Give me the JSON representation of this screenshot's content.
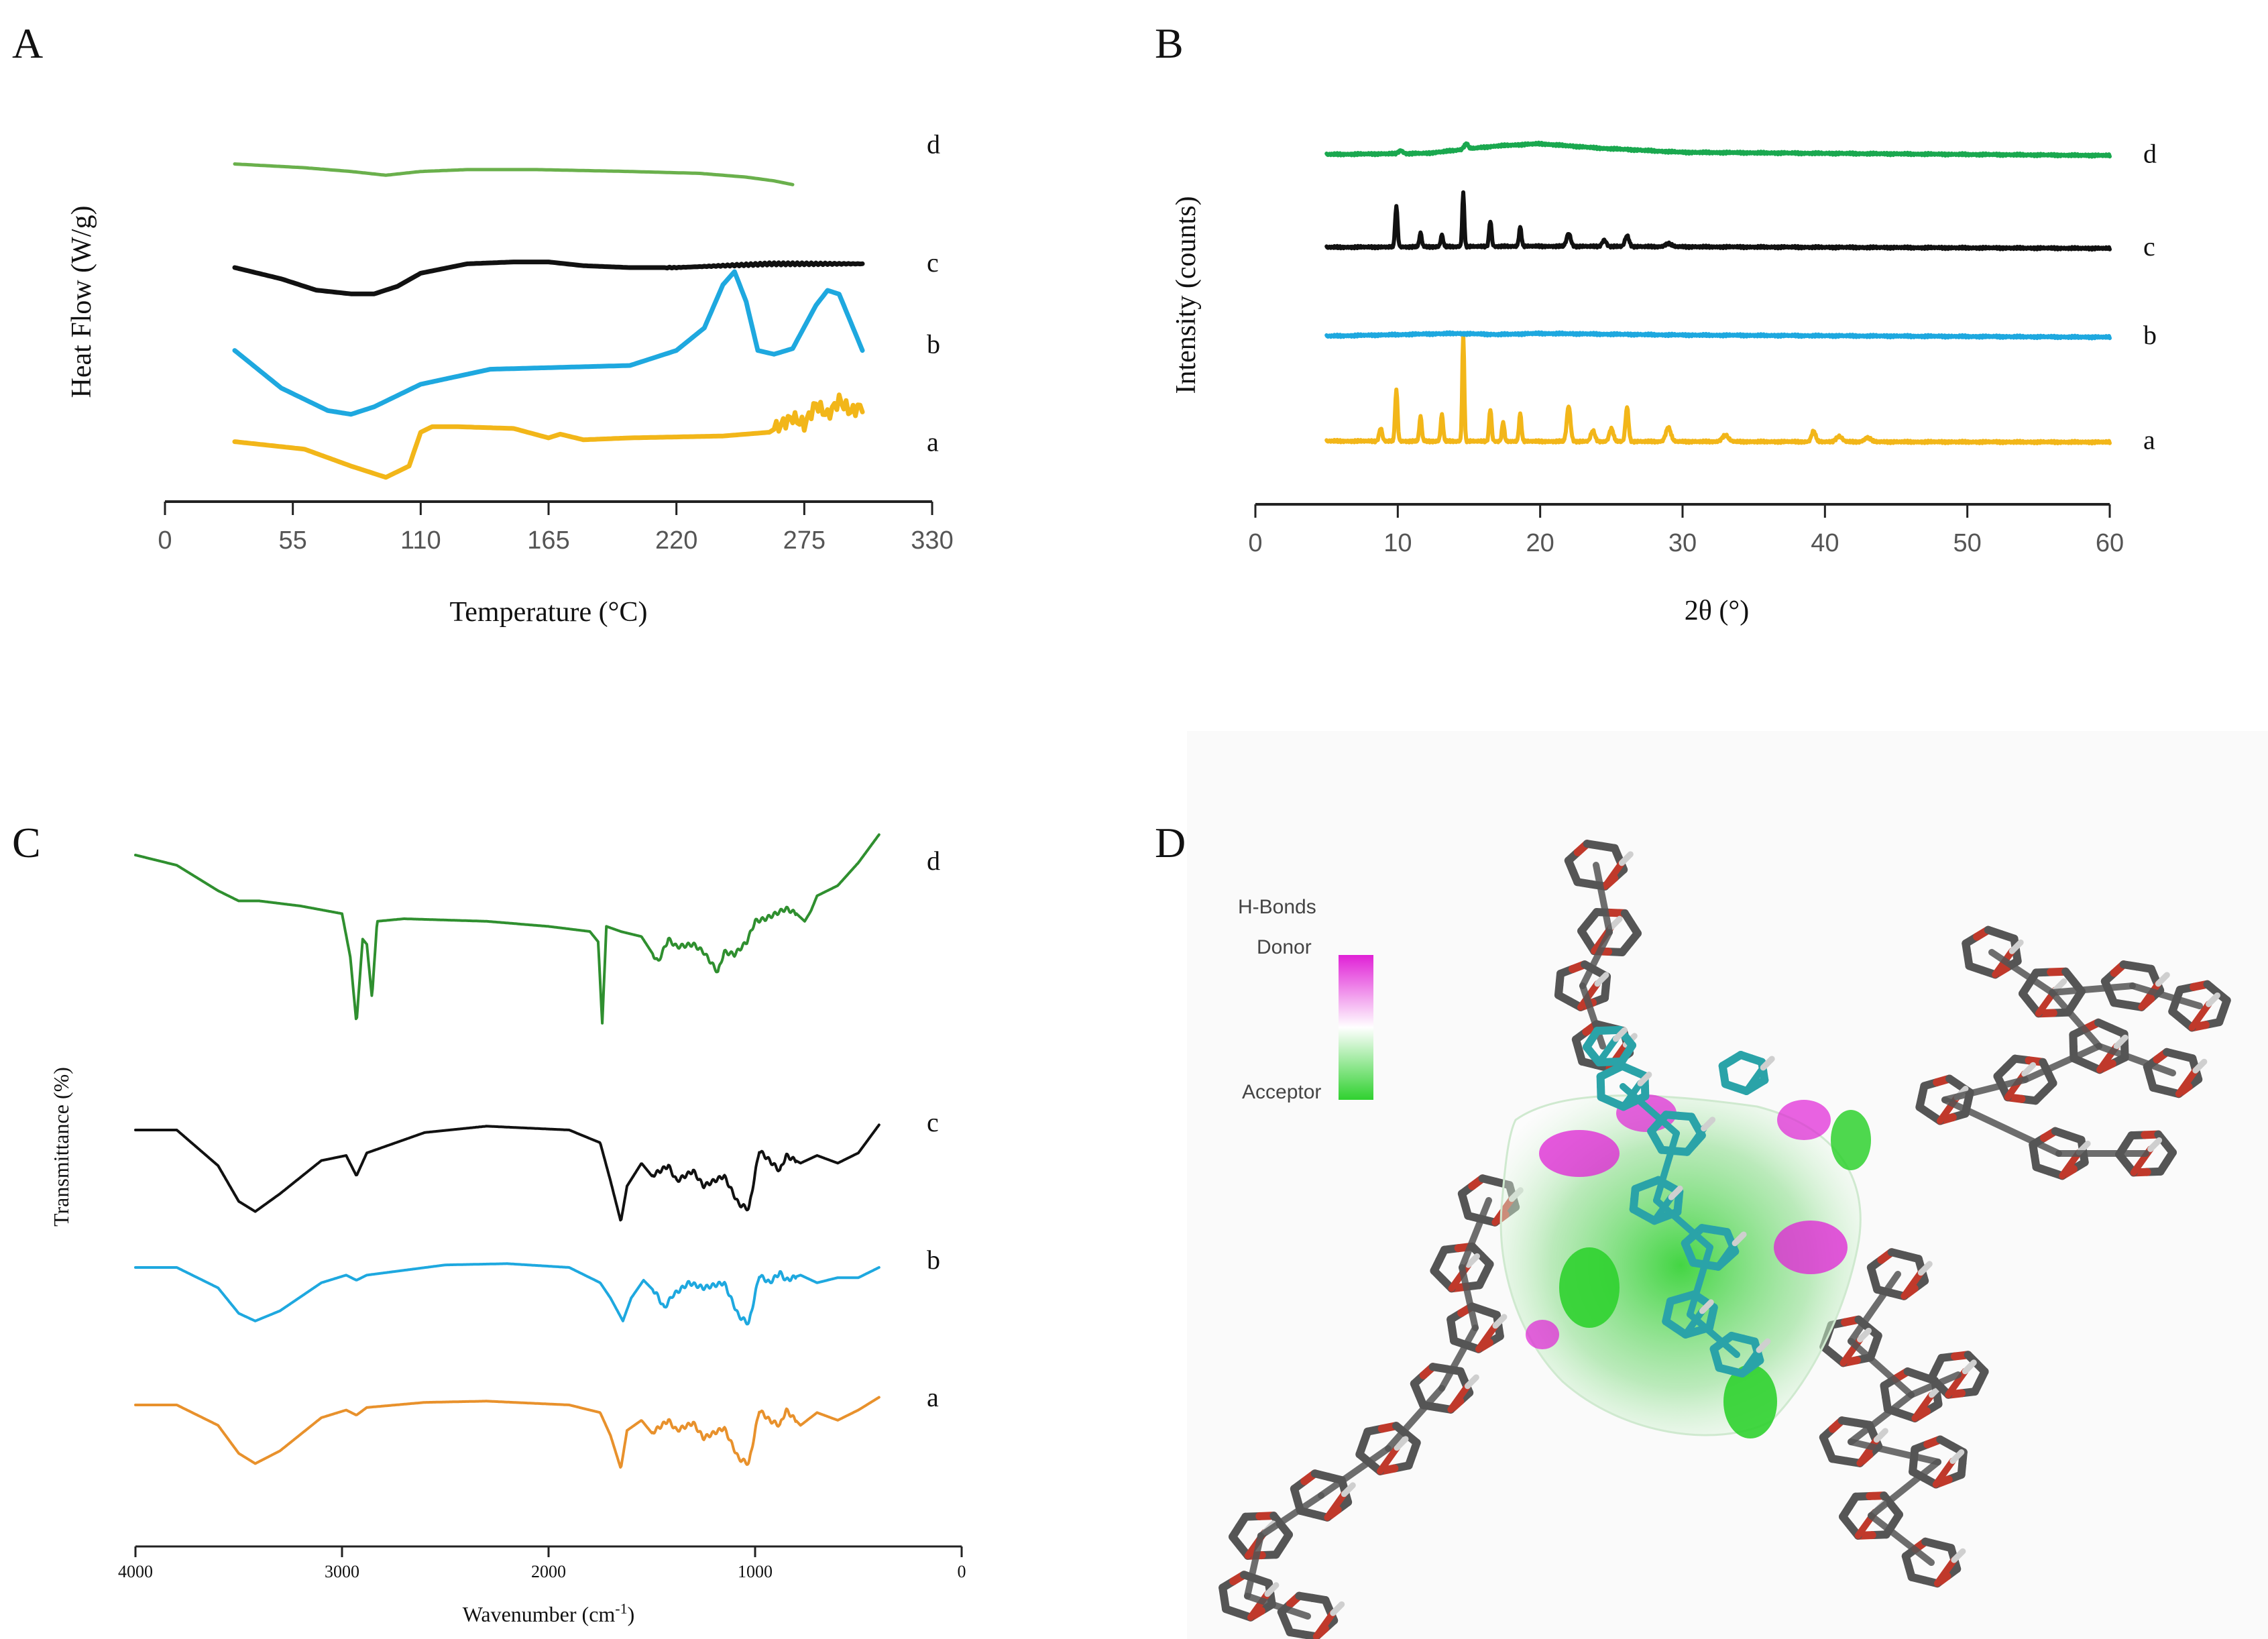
{
  "panels": [
    "A",
    "B",
    "C",
    "D"
  ],
  "chart_data": [
    {
      "id": "A",
      "type": "line",
      "xlabel": "Temperature (°C)",
      "ylabel": "Heat Flow (W/g)",
      "xlim": [
        0,
        330
      ],
      "xticks": [
        "0",
        "55",
        "110",
        "165",
        "220",
        "275",
        "330"
      ],
      "series": [
        {
          "name": "a",
          "color": "#f2b619",
          "offset": 0.08,
          "x": [
            30,
            60,
            80,
            95,
            105,
            110,
            115,
            125,
            150,
            165,
            170,
            180,
            200,
            240,
            260,
            270,
            275,
            280,
            285,
            290,
            295,
            300
          ],
          "y": [
            0,
            -0.4,
            -1.3,
            -1.9,
            -1.3,
            0.5,
            0.8,
            0.8,
            0.7,
            0.2,
            0.4,
            0.1,
            0.2,
            0.3,
            0.5,
            1.3,
            0.9,
            2.0,
            1.4,
            2.2,
            1.6,
            1.9
          ]
        },
        {
          "name": "b",
          "color": "#1ea8df",
          "offset": 0.3,
          "x": [
            30,
            50,
            70,
            80,
            90,
            110,
            140,
            170,
            200,
            220,
            232,
            240,
            245,
            250,
            255,
            262,
            270,
            280,
            285,
            290,
            295,
            300
          ],
          "y": [
            0,
            -2.0,
            -3.2,
            -3.4,
            -3.0,
            -1.8,
            -1.0,
            -0.9,
            -0.8,
            0,
            1.2,
            3.5,
            4.2,
            2.6,
            0,
            -0.2,
            0.1,
            2.4,
            3.2,
            3.0,
            1.5,
            0
          ]
        },
        {
          "name": "c",
          "color": "#111111",
          "offset": 0.5,
          "x": [
            30,
            50,
            65,
            80,
            90,
            100,
            110,
            130,
            150,
            165,
            180,
            200,
            220,
            240,
            260,
            280,
            300
          ],
          "y": [
            0,
            -0.6,
            -1.2,
            -1.4,
            -1.4,
            -1.0,
            -0.3,
            0.2,
            0.3,
            0.3,
            0.1,
            0.0,
            0.0,
            0.1,
            0.2,
            0.2,
            0.2
          ]
        },
        {
          "name": "d",
          "color": "#6ab04c",
          "offset": 0.75,
          "x": [
            30,
            60,
            80,
            95,
            110,
            130,
            160,
            200,
            230,
            250,
            262,
            270
          ],
          "y": [
            0,
            -0.2,
            -0.4,
            -0.6,
            -0.4,
            -0.3,
            -0.3,
            -0.4,
            -0.5,
            -0.7,
            -0.9,
            -1.1
          ]
        }
      ]
    },
    {
      "id": "B",
      "type": "line",
      "xlabel": "2θ (°)",
      "ylabel": "Intensity (counts)",
      "xlim": [
        0,
        60
      ],
      "xticks": [
        "0",
        "10",
        "20",
        "30",
        "40",
        "50",
        "60"
      ],
      "series": [
        {
          "name": "a",
          "color": "#f2b619",
          "offset": 0.14,
          "baseline": [
            [
              5,
              0
            ],
            [
              60,
              -0.1
            ]
          ],
          "peaks": [
            [
              8.8,
              1.2,
              0.15
            ],
            [
              9.9,
              4.8,
              0.12
            ],
            [
              11.6,
              2.3,
              0.12
            ],
            [
              13.1,
              2.5,
              0.12
            ],
            [
              14.6,
              10.0,
              0.1
            ],
            [
              16.5,
              3.0,
              0.12
            ],
            [
              17.4,
              1.8,
              0.12
            ],
            [
              18.6,
              2.6,
              0.12
            ],
            [
              22.0,
              3.3,
              0.18
            ],
            [
              23.7,
              1.0,
              0.2
            ],
            [
              25.0,
              1.2,
              0.2
            ],
            [
              26.1,
              3.2,
              0.15
            ],
            [
              29.0,
              1.3,
              0.25
            ],
            [
              33.0,
              0.6,
              0.3
            ],
            [
              39.2,
              1.0,
              0.2
            ],
            [
              41.0,
              0.5,
              0.3
            ],
            [
              43.0,
              0.4,
              0.3
            ]
          ]
        },
        {
          "name": "b",
          "color": "#1ea8df",
          "offset": 0.4,
          "baseline": [
            [
              5,
              0
            ],
            [
              14,
              0.25
            ],
            [
              17,
              0.15
            ],
            [
              20,
              0.25
            ],
            [
              30,
              0.1
            ],
            [
              60,
              -0.1
            ]
          ],
          "peaks": []
        },
        {
          "name": "c",
          "color": "#111111",
          "offset": 0.62,
          "baseline": [
            [
              5,
              0
            ],
            [
              20,
              0.1
            ],
            [
              60,
              -0.1
            ]
          ],
          "peaks": [
            [
              9.9,
              3.8,
              0.12
            ],
            [
              11.6,
              1.3,
              0.12
            ],
            [
              13.1,
              1.1,
              0.12
            ],
            [
              14.6,
              5.0,
              0.1
            ],
            [
              16.5,
              2.4,
              0.12
            ],
            [
              18.6,
              1.8,
              0.12
            ],
            [
              22.0,
              1.2,
              0.2
            ],
            [
              24.5,
              0.6,
              0.2
            ],
            [
              26.1,
              1.0,
              0.2
            ],
            [
              29.0,
              0.3,
              0.3
            ]
          ]
        },
        {
          "name": "d",
          "color": "#1aa84f",
          "offset": 0.85,
          "baseline": [
            [
              5,
              0
            ],
            [
              12,
              0.1
            ],
            [
              17,
              0.8
            ],
            [
              20,
              1.0
            ],
            [
              24,
              0.6
            ],
            [
              30,
              0.2
            ],
            [
              60,
              -0.1
            ]
          ],
          "peaks": [
            [
              10.2,
              0.3,
              0.2
            ],
            [
              14.8,
              0.5,
              0.2
            ]
          ]
        }
      ]
    },
    {
      "id": "C",
      "type": "line",
      "xlabel": "Wavenumber (cm",
      "xlabel_sup": "-1",
      "xlabel_end": ")",
      "ylabel": "Transmittance (%)",
      "xlim": [
        4000,
        0
      ],
      "xticks": [
        "4000",
        "3000",
        "2000",
        "1000",
        "0"
      ],
      "series": [
        {
          "name": "a",
          "color": "#e8912c",
          "offset": 0.12,
          "x": [
            4000,
            3800,
            3600,
            3500,
            3420,
            3300,
            3100,
            2980,
            2930,
            2880,
            2600,
            2300,
            1900,
            1750,
            1700,
            1650,
            1620,
            1550,
            1500,
            1420,
            1380,
            1300,
            1250,
            1150,
            1080,
            1030,
            980,
            930,
            880,
            850,
            780,
            700,
            600,
            500,
            400
          ],
          "y": [
            0,
            0,
            -0.8,
            -1.9,
            -2.3,
            -1.8,
            -0.5,
            -0.2,
            -0.4,
            -0.1,
            0.1,
            0.15,
            0.0,
            -0.3,
            -1.2,
            -2.5,
            -1.0,
            -0.6,
            -1.1,
            -0.6,
            -1.0,
            -0.7,
            -1.3,
            -0.9,
            -2.1,
            -2.3,
            -0.2,
            -0.6,
            -0.8,
            -0.2,
            -0.8,
            -0.3,
            -0.6,
            -0.2,
            0.3
          ]
        },
        {
          "name": "b",
          "color": "#1ea8df",
          "offset": 0.34,
          "x": [
            4000,
            3800,
            3600,
            3500,
            3420,
            3300,
            3100,
            2980,
            2930,
            2880,
            2500,
            2200,
            1900,
            1750,
            1700,
            1640,
            1600,
            1540,
            1480,
            1440,
            1400,
            1320,
            1250,
            1150,
            1080,
            1030,
            980,
            930,
            880,
            850,
            780,
            700,
            600,
            500,
            400
          ],
          "y": [
            0,
            0,
            -0.8,
            -1.8,
            -2.1,
            -1.7,
            -0.6,
            -0.3,
            -0.5,
            -0.3,
            0.1,
            0.15,
            0.0,
            -0.6,
            -1.2,
            -2.1,
            -1.2,
            -0.5,
            -1.0,
            -1.6,
            -1.1,
            -0.6,
            -0.8,
            -0.6,
            -1.9,
            -2.2,
            -0.3,
            -0.6,
            -0.2,
            -0.5,
            -0.3,
            -0.6,
            -0.4,
            -0.4,
            0.0
          ]
        },
        {
          "name": "c",
          "color": "#111111",
          "offset": 0.57,
          "x": [
            4000,
            3800,
            3600,
            3500,
            3420,
            3300,
            3100,
            2980,
            2930,
            2880,
            2600,
            2300,
            1900,
            1750,
            1700,
            1650,
            1620,
            1550,
            1500,
            1420,
            1380,
            1300,
            1250,
            1150,
            1080,
            1030,
            980,
            930,
            880,
            850,
            780,
            700,
            600,
            500,
            400
          ],
          "y": [
            0,
            0,
            -1.4,
            -2.8,
            -3.2,
            -2.5,
            -1.2,
            -1.0,
            -1.8,
            -0.9,
            -0.1,
            0.15,
            0.0,
            -0.5,
            -2.0,
            -3.6,
            -2.2,
            -1.3,
            -1.8,
            -1.4,
            -2.0,
            -1.6,
            -2.2,
            -1.8,
            -2.9,
            -3.1,
            -0.8,
            -1.2,
            -1.6,
            -1.0,
            -1.3,
            -1.0,
            -1.3,
            -0.9,
            0.2
          ]
        },
        {
          "name": "d",
          "color": "#2f8f2f",
          "offset": 0.88,
          "x": [
            4000,
            3800,
            3600,
            3500,
            3400,
            3200,
            3000,
            2960,
            2930,
            2900,
            2880,
            2855,
            2830,
            2700,
            2300,
            2000,
            1800,
            1760,
            1740,
            1720,
            1650,
            1550,
            1470,
            1420,
            1380,
            1300,
            1250,
            1180,
            1150,
            1100,
            1040,
            1000,
            950,
            900,
            850,
            800,
            760,
            730,
            700,
            600,
            500,
            400
          ],
          "y": [
            0,
            -0.4,
            -1.4,
            -1.8,
            -1.8,
            -2.0,
            -2.3,
            -4.0,
            -6.6,
            -3.3,
            -3.5,
            -5.6,
            -2.6,
            -2.5,
            -2.6,
            -2.8,
            -3.0,
            -3.4,
            -6.6,
            -2.8,
            -3.0,
            -3.2,
            -4.2,
            -3.3,
            -3.6,
            -3.5,
            -3.8,
            -4.6,
            -3.8,
            -3.9,
            -3.4,
            -2.6,
            -2.5,
            -2.3,
            -2.1,
            -2.3,
            -2.6,
            -2.2,
            -1.6,
            -1.2,
            -0.3,
            0.8
          ]
        }
      ]
    }
  ],
  "panel_d": {
    "legend_title": "H-Bonds",
    "legend_top": "Donor",
    "legend_bottom": "Acceptor",
    "colors": {
      "donor": "#e021d6",
      "acceptor": "#2fd12f",
      "carbon": "#555555",
      "oxygen": "#c0392b",
      "ligand": "#2aa3a8"
    }
  }
}
